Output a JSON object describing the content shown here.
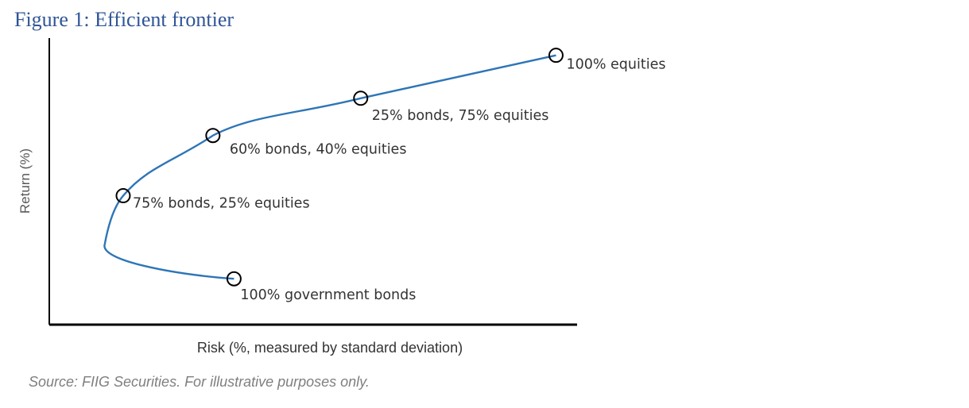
{
  "title": "Figure 1: Efficient frontier",
  "source": "Source: FIIG Securities. For illustrative purposes only.",
  "colors": {
    "title": "#2f5597",
    "curve": "#2e75b6",
    "axis": "#000000",
    "text": "#333333"
  },
  "chart_data": {
    "type": "line",
    "title": "Figure 1: Efficient frontier",
    "xlabel": "Risk (%, measured by standard deviation)",
    "ylabel": "Return (%)",
    "xlim": [
      0,
      100
    ],
    "ylim": [
      0,
      100
    ],
    "grid": false,
    "axis_ticks": false,
    "points": [
      {
        "label": "100% government bonds",
        "x": 35,
        "y": 16
      },
      {
        "label": "75% bonds, 25% equities",
        "x": 14,
        "y": 45
      },
      {
        "label": "60% bonds, 40% equities",
        "x": 31,
        "y": 66
      },
      {
        "label": "25% bonds, 75% equities",
        "x": 59,
        "y": 79
      },
      {
        "label": "100% equities",
        "x": 96,
        "y": 94
      }
    ],
    "curve_min_x_point": {
      "x": 10.5,
      "y": 28
    }
  }
}
